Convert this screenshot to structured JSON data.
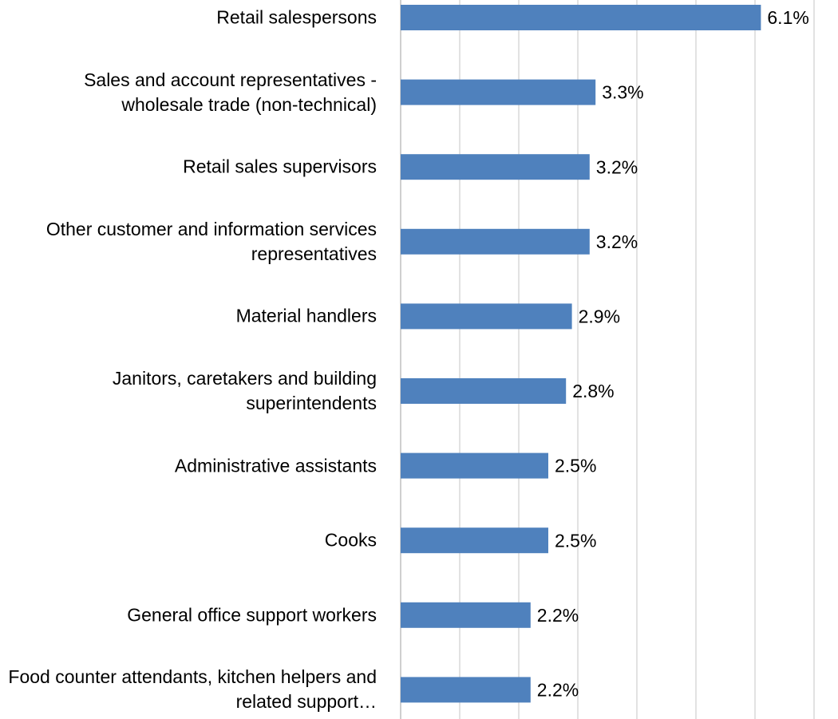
{
  "chart_data": {
    "type": "barh",
    "categories": [
      "Retail salespersons",
      "Sales and account representatives - wholesale trade (non-technical)",
      "Retail sales supervisors",
      "Other customer and information services representatives",
      "Material handlers",
      "Janitors, caretakers and building superintendents",
      "Administrative assistants",
      "Cooks",
      "General office support workers",
      "Food counter attendants, kitchen helpers and related support…"
    ],
    "values": [
      6.1,
      3.3,
      3.2,
      3.2,
      2.9,
      2.8,
      2.5,
      2.5,
      2.2,
      2.2
    ],
    "value_labels": [
      "6.1%",
      "3.3%",
      "3.2%",
      "3.2%",
      "2.9%",
      "2.8%",
      "2.5%",
      "2.5%",
      "2.2%",
      "2.2%"
    ],
    "color": "#4f81bd",
    "xlim": [
      0,
      7
    ],
    "xticks": [
      0,
      1,
      2,
      3,
      4,
      5,
      6,
      7
    ],
    "grid": true
  }
}
